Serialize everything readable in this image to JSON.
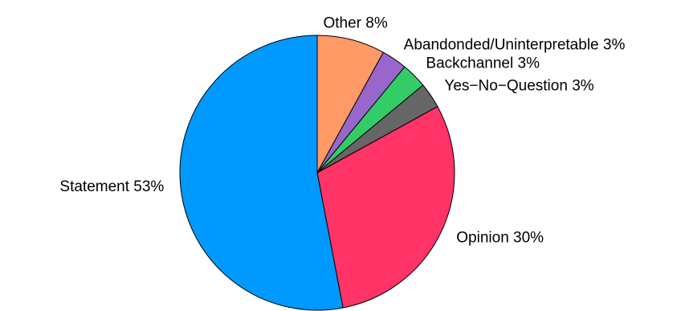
{
  "chart_data": {
    "type": "pie",
    "slices": [
      {
        "label": "Other 8%",
        "name": "Other",
        "value": 8,
        "color": "#FF9966"
      },
      {
        "label": "Abandonded/Uninterpretable 3%",
        "name": "Abandonded/Uninterpretable",
        "value": 3,
        "color": "#9966CC"
      },
      {
        "label": "Backchannel 3%",
        "name": "Backchannel",
        "value": 3,
        "color": "#33CC66"
      },
      {
        "label": "Yes−No−Question 3%",
        "name": "Yes−No−Question",
        "value": 3,
        "color": "#666666"
      },
      {
        "label": "Opinion 30%",
        "name": "Opinion",
        "value": 30,
        "color": "#FF3366"
      },
      {
        "label": "Statement 53%",
        "name": "Statement",
        "value": 53,
        "color": "#0099FF"
      }
    ],
    "start_angle_deg": 90,
    "direction": "clockwise",
    "title": "",
    "legend": "none"
  }
}
